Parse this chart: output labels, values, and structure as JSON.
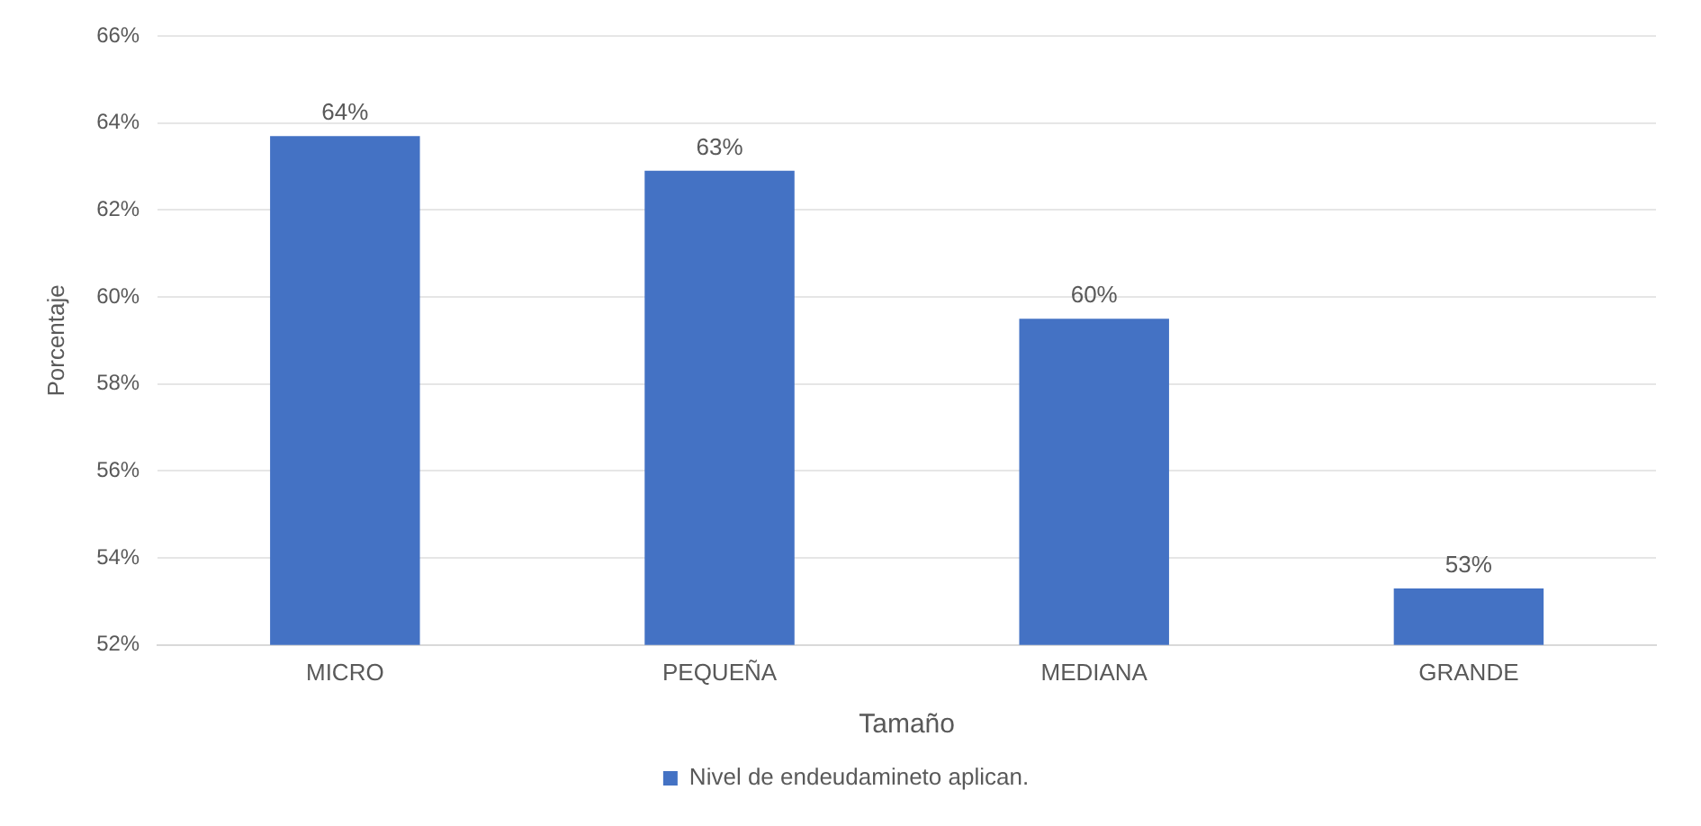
{
  "chart_data": {
    "type": "bar",
    "xlabel": "Tamaño",
    "ylabel": "Porcentaje",
    "categories": [
      "MICRO",
      "PEQUEÑA",
      "MEDIANA",
      "GRANDE"
    ],
    "series": [
      {
        "name": "Nivel de endeudamineto aplican.",
        "color": "#4472c4",
        "values": [
          63.7,
          62.9,
          59.5,
          53.3
        ],
        "value_labels": [
          "64%",
          "63%",
          "60%",
          "53%"
        ]
      }
    ],
    "ylim": [
      52,
      66
    ],
    "yticks": [
      {
        "value": 52,
        "label": "52%"
      },
      {
        "value": 54,
        "label": "54%"
      },
      {
        "value": 56,
        "label": "56%"
      },
      {
        "value": 58,
        "label": "58%"
      },
      {
        "value": 60,
        "label": "60%"
      },
      {
        "value": 62,
        "label": "62%"
      },
      {
        "value": 64,
        "label": "64%"
      },
      {
        "value": 66,
        "label": "66%"
      }
    ],
    "grid": "y",
    "legend": "bottom"
  }
}
